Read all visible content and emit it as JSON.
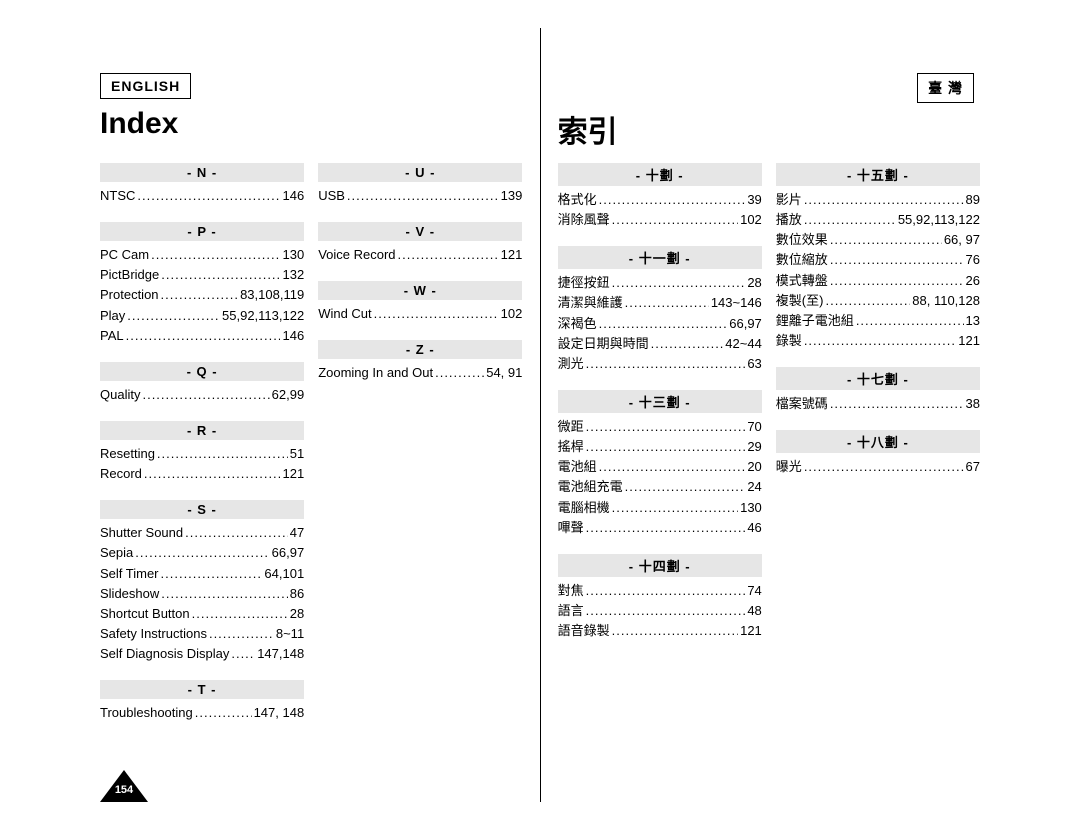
{
  "pageNumber": "154",
  "left": {
    "langLabel": "ENGLISH",
    "title": "Index",
    "sections": [
      {
        "head": "- N -",
        "entries": [
          {
            "term": "NTSC",
            "pages": "146"
          }
        ]
      },
      {
        "head": "- P -",
        "entries": [
          {
            "term": "PC Cam",
            "pages": "130"
          },
          {
            "term": "PictBridge",
            "pages": "132"
          },
          {
            "term": "Protection",
            "pages": "83,108,119"
          },
          {
            "term": "Play",
            "pages": "55,92,113,122"
          },
          {
            "term": "PAL",
            "pages": "146"
          }
        ]
      },
      {
        "head": "- Q -",
        "entries": [
          {
            "term": "Quality",
            "pages": "62,99"
          }
        ]
      },
      {
        "head": "- R -",
        "entries": [
          {
            "term": "Resetting",
            "pages": "51"
          },
          {
            "term": "Record",
            "pages": "121"
          }
        ]
      },
      {
        "head": "- S -",
        "entries": [
          {
            "term": "Shutter Sound",
            "pages": "47"
          },
          {
            "term": "Sepia",
            "pages": "66,97"
          },
          {
            "term": "Self Timer",
            "pages": "64,101"
          },
          {
            "term": "Slideshow",
            "pages": "86"
          },
          {
            "term": "Shortcut Button",
            "pages": "28"
          },
          {
            "term": "Safety Instructions",
            "pages": "8~11"
          },
          {
            "term": "Self Diagnosis Display",
            "pages": "147,148"
          }
        ]
      },
      {
        "head": "- T -",
        "entries": [
          {
            "term": "Troubleshooting",
            "pages": "147, 148"
          }
        ]
      },
      {
        "head": "- U -",
        "entries": [
          {
            "term": "USB",
            "pages": "139"
          }
        ]
      },
      {
        "head": "- V -",
        "entries": [
          {
            "term": "Voice Record",
            "pages": "121"
          }
        ]
      },
      {
        "head": "- W -",
        "entries": [
          {
            "term": "Wind Cut",
            "pages": "102"
          }
        ]
      },
      {
        "head": "- Z -",
        "entries": [
          {
            "term": "Zooming In and Out",
            "pages": "54, 91"
          }
        ]
      }
    ]
  },
  "right": {
    "langLabel": "臺 灣",
    "title": "索引",
    "sections": [
      {
        "head": "- 十劃 -",
        "entries": [
          {
            "term": "格式化",
            "pages": "39"
          },
          {
            "term": "消除風聲",
            "pages": "102"
          }
        ]
      },
      {
        "head": "- 十一劃 -",
        "entries": [
          {
            "term": "捷徑按鈕",
            "pages": "28"
          },
          {
            "term": "清潔與維護",
            "pages": "143~146"
          },
          {
            "term": "深褐色",
            "pages": "66,97"
          },
          {
            "term": "設定日期與時間",
            "pages": "42~44"
          },
          {
            "term": "測光",
            "pages": "63"
          }
        ]
      },
      {
        "head": "- 十三劃 -",
        "entries": [
          {
            "term": "微距",
            "pages": "70"
          },
          {
            "term": "搖桿",
            "pages": "29"
          },
          {
            "term": "電池組",
            "pages": "20"
          },
          {
            "term": "電池組充電",
            "pages": "24"
          },
          {
            "term": "電腦相機",
            "pages": "130"
          },
          {
            "term": "嗶聲",
            "pages": "46"
          }
        ]
      },
      {
        "head": "- 十四劃 -",
        "entries": [
          {
            "term": "對焦",
            "pages": "74"
          },
          {
            "term": "語言",
            "pages": "48"
          },
          {
            "term": "語音錄製",
            "pages": "121"
          }
        ]
      },
      {
        "head": "- 十五劃 -",
        "entries": [
          {
            "term": "影片",
            "pages": "89"
          },
          {
            "term": "播放",
            "pages": "55,92,113,122"
          },
          {
            "term": "數位效果",
            "pages": "66, 97"
          },
          {
            "term": "數位縮放",
            "pages": "76"
          },
          {
            "term": "模式轉盤",
            "pages": "26"
          },
          {
            "term": "複製(至)",
            "pages": "88, 110,128"
          },
          {
            "term": "鋰離子電池組",
            "pages": "13"
          },
          {
            "term": "錄製",
            "pages": "121"
          }
        ]
      },
      {
        "head": "- 十七劃 -",
        "entries": [
          {
            "term": "檔案號碼",
            "pages": "38"
          }
        ]
      },
      {
        "head": "- 十八劃 -",
        "entries": [
          {
            "term": "曝光",
            "pages": "67"
          }
        ]
      }
    ]
  },
  "style": {
    "background": "#ffffff",
    "sectionHeadBg": "#e6e6e6",
    "textColor": "#000000",
    "badgeFill": "#000000",
    "badgeText": "#ffffff",
    "fontSizeTitle": 30,
    "fontSizeBody": 13,
    "fontSizeLang": 14
  }
}
